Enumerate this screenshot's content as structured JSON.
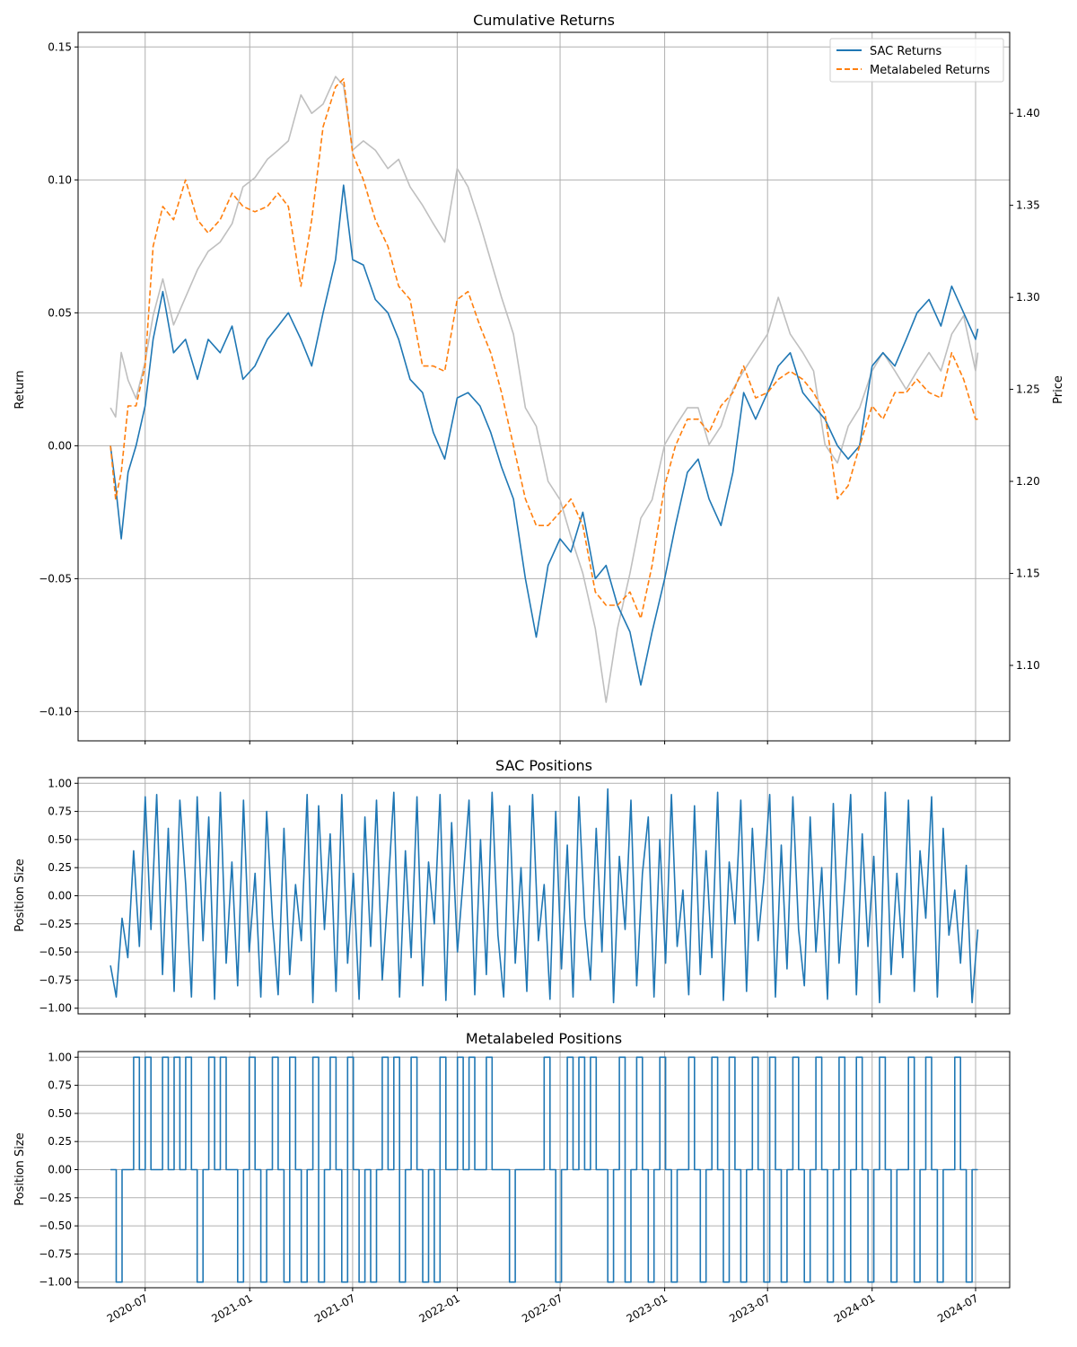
{
  "chart_data": [
    {
      "type": "line",
      "title": "Cumulative Returns",
      "ylabel": "Return",
      "y2label": "Price",
      "ylim": [
        -0.111,
        0.1555
      ],
      "y2lim": [
        1.059,
        1.444
      ],
      "yticks": [
        -0.1,
        -0.05,
        0.0,
        0.05,
        0.1,
        0.15
      ],
      "ytick_labels": [
        "−0.10",
        "−0.05",
        "0.00",
        "0.05",
        "0.10",
        "0.15"
      ],
      "y2ticks": [
        1.1,
        1.15,
        1.2,
        1.25,
        1.3,
        1.35,
        1.4
      ],
      "y2tick_labels": [
        "1.10",
        "1.15",
        "1.20",
        "1.25",
        "1.30",
        "1.35",
        "1.40"
      ],
      "grid": true,
      "legend_position": "top-right",
      "series": [
        {
          "name": "SAC Returns",
          "color": "#1f77b4",
          "style": "solid",
          "axis": "left",
          "x": [
            "2020-05-01",
            "2020-05-10",
            "2020-05-20",
            "2020-06-01",
            "2020-06-15",
            "2020-07-01",
            "2020-07-15",
            "2020-08-01",
            "2020-08-20",
            "2020-09-10",
            "2020-10-01",
            "2020-10-20",
            "2020-11-10",
            "2020-12-01",
            "2020-12-20",
            "2021-01-10",
            "2021-02-01",
            "2021-02-20",
            "2021-03-10",
            "2021-04-01",
            "2021-04-20",
            "2021-05-10",
            "2021-06-01",
            "2021-06-15",
            "2021-07-01",
            "2021-07-20",
            "2021-08-10",
            "2021-09-01",
            "2021-09-20",
            "2021-10-10",
            "2021-11-01",
            "2021-11-20",
            "2021-12-10",
            "2022-01-01",
            "2022-01-20",
            "2022-02-10",
            "2022-03-01",
            "2022-03-20",
            "2022-04-10",
            "2022-05-01",
            "2022-05-20",
            "2022-06-10",
            "2022-07-01",
            "2022-07-20",
            "2022-08-10",
            "2022-09-01",
            "2022-09-20",
            "2022-10-10",
            "2022-11-01",
            "2022-11-20",
            "2022-12-10",
            "2023-01-01",
            "2023-01-20",
            "2023-02-10",
            "2023-03-01",
            "2023-03-20",
            "2023-04-10",
            "2023-05-01",
            "2023-05-20",
            "2023-06-10",
            "2023-07-01",
            "2023-07-20",
            "2023-08-10",
            "2023-09-01",
            "2023-09-20",
            "2023-10-10",
            "2023-11-01",
            "2023-11-20",
            "2023-12-10",
            "2024-01-01",
            "2024-01-20",
            "2024-02-10",
            "2024-03-01",
            "2024-03-20",
            "2024-04-10",
            "2024-05-01",
            "2024-05-20",
            "2024-06-10",
            "2024-07-01",
            "2024-07-05"
          ],
          "values": [
            0.0,
            -0.015,
            -0.035,
            -0.01,
            0.0,
            0.015,
            0.04,
            0.058,
            0.035,
            0.04,
            0.025,
            0.04,
            0.035,
            0.045,
            0.025,
            0.03,
            0.04,
            0.045,
            0.05,
            0.04,
            0.03,
            0.05,
            0.07,
            0.098,
            0.07,
            0.068,
            0.055,
            0.05,
            0.04,
            0.025,
            0.02,
            0.005,
            -0.005,
            0.018,
            0.02,
            0.015,
            0.005,
            -0.008,
            -0.02,
            -0.05,
            -0.072,
            -0.045,
            -0.035,
            -0.04,
            -0.025,
            -0.05,
            -0.045,
            -0.06,
            -0.07,
            -0.09,
            -0.07,
            -0.05,
            -0.03,
            -0.01,
            -0.005,
            -0.02,
            -0.03,
            -0.01,
            0.02,
            0.01,
            0.02,
            0.03,
            0.035,
            0.02,
            0.015,
            0.01,
            0.0,
            -0.005,
            0.0,
            0.03,
            0.035,
            0.03,
            0.04,
            0.05,
            0.055,
            0.045,
            0.06,
            0.05,
            0.04,
            0.044
          ]
        },
        {
          "name": "Metalabeled Returns",
          "color": "#ff7f0e",
          "style": "dashed",
          "axis": "left",
          "x": [
            "2020-05-01",
            "2020-05-10",
            "2020-05-20",
            "2020-06-01",
            "2020-06-15",
            "2020-07-01",
            "2020-07-15",
            "2020-08-01",
            "2020-08-20",
            "2020-09-10",
            "2020-10-01",
            "2020-10-20",
            "2020-11-10",
            "2020-12-01",
            "2020-12-20",
            "2021-01-10",
            "2021-02-01",
            "2021-02-20",
            "2021-03-10",
            "2021-04-01",
            "2021-04-20",
            "2021-05-10",
            "2021-06-01",
            "2021-06-15",
            "2021-07-01",
            "2021-07-20",
            "2021-08-10",
            "2021-09-01",
            "2021-09-20",
            "2021-10-10",
            "2021-11-01",
            "2021-11-20",
            "2021-12-10",
            "2022-01-01",
            "2022-01-20",
            "2022-02-10",
            "2022-03-01",
            "2022-03-20",
            "2022-04-10",
            "2022-05-01",
            "2022-05-20",
            "2022-06-10",
            "2022-07-01",
            "2022-07-20",
            "2022-08-10",
            "2022-09-01",
            "2022-09-20",
            "2022-10-10",
            "2022-11-01",
            "2022-11-20",
            "2022-12-10",
            "2023-01-01",
            "2023-01-20",
            "2023-02-10",
            "2023-03-01",
            "2023-03-20",
            "2023-04-10",
            "2023-05-01",
            "2023-05-20",
            "2023-06-10",
            "2023-07-01",
            "2023-07-20",
            "2023-08-10",
            "2023-09-01",
            "2023-09-20",
            "2023-10-10",
            "2023-11-01",
            "2023-11-20",
            "2023-12-10",
            "2024-01-01",
            "2024-01-20",
            "2024-02-10",
            "2024-03-01",
            "2024-03-20",
            "2024-04-10",
            "2024-05-01",
            "2024-05-20",
            "2024-06-10",
            "2024-07-01",
            "2024-07-05"
          ],
          "values": [
            0.0,
            -0.02,
            -0.01,
            0.015,
            0.015,
            0.03,
            0.075,
            0.09,
            0.085,
            0.1,
            0.085,
            0.08,
            0.085,
            0.095,
            0.09,
            0.088,
            0.09,
            0.095,
            0.09,
            0.06,
            0.085,
            0.12,
            0.135,
            0.138,
            0.11,
            0.1,
            0.085,
            0.075,
            0.06,
            0.055,
            0.03,
            0.03,
            0.028,
            0.055,
            0.058,
            0.045,
            0.035,
            0.02,
            0.0,
            -0.02,
            -0.03,
            -0.03,
            -0.025,
            -0.02,
            -0.03,
            -0.055,
            -0.06,
            -0.06,
            -0.055,
            -0.065,
            -0.045,
            -0.015,
            0.0,
            0.01,
            0.01,
            0.005,
            0.015,
            0.02,
            0.03,
            0.018,
            0.02,
            0.025,
            0.028,
            0.025,
            0.02,
            0.012,
            -0.02,
            -0.015,
            0.0,
            0.015,
            0.01,
            0.02,
            0.02,
            0.025,
            0.02,
            0.018,
            0.035,
            0.025,
            0.01,
            0.01
          ]
        },
        {
          "name": "",
          "color": "#bfbfbf",
          "style": "solid",
          "axis": "right",
          "x": [
            "2020-05-01",
            "2020-05-10",
            "2020-05-20",
            "2020-06-01",
            "2020-06-15",
            "2020-07-01",
            "2020-07-15",
            "2020-08-01",
            "2020-08-20",
            "2020-09-10",
            "2020-10-01",
            "2020-10-20",
            "2020-11-10",
            "2020-12-01",
            "2020-12-20",
            "2021-01-10",
            "2021-02-01",
            "2021-02-20",
            "2021-03-10",
            "2021-04-01",
            "2021-04-20",
            "2021-05-10",
            "2021-06-01",
            "2021-06-15",
            "2021-07-01",
            "2021-07-20",
            "2021-08-10",
            "2021-09-01",
            "2021-09-20",
            "2021-10-10",
            "2021-11-01",
            "2021-11-20",
            "2021-12-10",
            "2022-01-01",
            "2022-01-20",
            "2022-02-10",
            "2022-03-01",
            "2022-03-20",
            "2022-04-10",
            "2022-05-01",
            "2022-05-20",
            "2022-06-10",
            "2022-07-01",
            "2022-07-20",
            "2022-08-10",
            "2022-09-01",
            "2022-09-20",
            "2022-10-10",
            "2022-11-01",
            "2022-11-20",
            "2022-12-10",
            "2023-01-01",
            "2023-01-20",
            "2023-02-10",
            "2023-03-01",
            "2023-03-20",
            "2023-04-10",
            "2023-05-01",
            "2023-05-20",
            "2023-06-10",
            "2023-07-01",
            "2023-07-20",
            "2023-08-10",
            "2023-09-01",
            "2023-09-20",
            "2023-10-10",
            "2023-11-01",
            "2023-11-20",
            "2023-12-10",
            "2024-01-01",
            "2024-01-20",
            "2024-02-10",
            "2024-03-01",
            "2024-03-20",
            "2024-04-10",
            "2024-05-01",
            "2024-05-20",
            "2024-06-10",
            "2024-07-01",
            "2024-07-05"
          ],
          "values": [
            1.24,
            1.235,
            1.27,
            1.255,
            1.245,
            1.265,
            1.29,
            1.31,
            1.285,
            1.3,
            1.315,
            1.325,
            1.33,
            1.34,
            1.36,
            1.365,
            1.375,
            1.38,
            1.385,
            1.41,
            1.4,
            1.405,
            1.42,
            1.415,
            1.38,
            1.385,
            1.38,
            1.37,
            1.375,
            1.36,
            1.35,
            1.34,
            1.33,
            1.37,
            1.36,
            1.34,
            1.32,
            1.3,
            1.28,
            1.24,
            1.23,
            1.2,
            1.19,
            1.17,
            1.15,
            1.12,
            1.08,
            1.12,
            1.15,
            1.18,
            1.19,
            1.22,
            1.23,
            1.24,
            1.24,
            1.22,
            1.23,
            1.25,
            1.26,
            1.27,
            1.28,
            1.3,
            1.28,
            1.27,
            1.26,
            1.22,
            1.21,
            1.23,
            1.24,
            1.26,
            1.27,
            1.26,
            1.25,
            1.26,
            1.27,
            1.26,
            1.28,
            1.29,
            1.26,
            1.27
          ]
        }
      ]
    },
    {
      "type": "line",
      "title": "SAC Positions",
      "ylabel": "Position Size",
      "ylim": [
        -1.05,
        1.05
      ],
      "yticks": [
        -1.0,
        -0.75,
        -0.5,
        -0.25,
        0.0,
        0.25,
        0.5,
        0.75,
        1.0
      ],
      "ytick_labels": [
        "−1.00",
        "−0.75",
        "−0.50",
        "−0.25",
        "0.00",
        "0.25",
        "0.50",
        "0.75",
        "1.00"
      ],
      "grid": true,
      "series": [
        {
          "name": "",
          "color": "#1f77b4",
          "x_start": "2020-05-01",
          "x_end": "2024-07-05",
          "values": [
            -0.62,
            -0.9,
            -0.2,
            -0.55,
            0.4,
            -0.45,
            0.88,
            -0.3,
            0.9,
            -0.7,
            0.6,
            -0.85,
            0.85,
            0.1,
            -0.9,
            0.88,
            -0.4,
            0.7,
            -0.92,
            0.92,
            -0.6,
            0.3,
            -0.8,
            0.85,
            -0.5,
            0.2,
            -0.9,
            0.75,
            -0.2,
            -0.88,
            0.6,
            -0.7,
            0.1,
            -0.4,
            0.9,
            -0.95,
            0.8,
            -0.3,
            0.55,
            -0.85,
            0.9,
            -0.6,
            0.2,
            -0.92,
            0.7,
            -0.45,
            0.85,
            -0.75,
            0.05,
            0.92,
            -0.9,
            0.4,
            -0.55,
            0.88,
            -0.8,
            0.3,
            -0.25,
            0.9,
            -0.93,
            0.65,
            -0.5,
            0.15,
            0.85,
            -0.88,
            0.5,
            -0.7,
            0.92,
            -0.35,
            -0.9,
            0.8,
            -0.6,
            0.25,
            -0.85,
            0.9,
            -0.4,
            0.1,
            -0.92,
            0.75,
            -0.65,
            0.45,
            -0.9,
            0.88,
            -0.2,
            -0.75,
            0.6,
            -0.5,
            0.95,
            -0.95,
            0.35,
            -0.3,
            0.85,
            -0.8,
            0.2,
            0.7,
            -0.9,
            0.5,
            -0.6,
            0.9,
            -0.45,
            0.05,
            -0.88,
            0.8,
            -0.7,
            0.4,
            -0.55,
            0.92,
            -0.93,
            0.3,
            -0.25,
            0.85,
            -0.85,
            0.6,
            -0.4,
            0.15,
            0.9,
            -0.9,
            0.45,
            -0.65,
            0.88,
            -0.3,
            -0.8,
            0.7,
            -0.5,
            0.25,
            -0.92,
            0.82,
            -0.6,
            0.1,
            0.9,
            -0.88,
            0.55,
            -0.45,
            0.35,
            -0.95,
            0.92,
            -0.7,
            0.2,
            -0.55,
            0.85,
            -0.85,
            0.4,
            -0.2,
            0.88,
            -0.9,
            0.6,
            -0.35,
            0.05,
            -0.6,
            0.27,
            -0.95,
            -0.3
          ]
        }
      ]
    },
    {
      "type": "line",
      "title": "Metalabeled Positions",
      "ylabel": "Position Size",
      "ylim": [
        -1.05,
        1.05
      ],
      "yticks": [
        -1.0,
        -0.75,
        -0.5,
        -0.25,
        0.0,
        0.25,
        0.5,
        0.75,
        1.0
      ],
      "ytick_labels": [
        "−1.00",
        "−0.75",
        "−0.50",
        "−0.25",
        "0.00",
        "0.25",
        "0.50",
        "0.75",
        "1.00"
      ],
      "grid": true,
      "series": [
        {
          "name": "",
          "color": "#1f77b4",
          "x_start": "2020-05-01",
          "x_end": "2024-07-05",
          "values": [
            0,
            -1,
            0,
            0,
            1,
            0,
            1,
            0,
            0,
            1,
            0,
            1,
            0,
            1,
            0,
            -1,
            0,
            1,
            0,
            1,
            0,
            0,
            -1,
            0,
            1,
            0,
            -1,
            0,
            1,
            0,
            -1,
            1,
            0,
            -1,
            0,
            1,
            -1,
            0,
            1,
            0,
            -1,
            1,
            0,
            -1,
            0,
            -1,
            0,
            1,
            0,
            1,
            -1,
            0,
            1,
            0,
            -1,
            0,
            -1,
            1,
            0,
            0,
            1,
            0,
            1,
            0,
            0,
            1,
            0,
            0,
            0,
            -1,
            0,
            0,
            0,
            0,
            0,
            1,
            0,
            -1,
            0,
            1,
            0,
            1,
            0,
            1,
            0,
            0,
            -1,
            0,
            1,
            -1,
            0,
            1,
            0,
            -1,
            0,
            1,
            0,
            -1,
            0,
            0,
            1,
            0,
            -1,
            0,
            1,
            0,
            -1,
            1,
            0,
            -1,
            0,
            1,
            0,
            -1,
            1,
            0,
            -1,
            0,
            1,
            0,
            -1,
            0,
            1,
            0,
            -1,
            0,
            1,
            -1,
            0,
            1,
            0,
            -1,
            0,
            1,
            0,
            -1,
            0,
            0,
            1,
            -1,
            0,
            1,
            0,
            -1,
            0,
            0,
            1,
            0,
            -1,
            0,
            0
          ]
        }
      ]
    }
  ],
  "xaxis": {
    "ticks": [
      "2020-07-01",
      "2021-01-01",
      "2021-07-01",
      "2022-01-01",
      "2022-07-01",
      "2023-01-01",
      "2023-07-01",
      "2024-01-01",
      "2024-07-01"
    ],
    "tick_labels": [
      "2020-07",
      "2021-01",
      "2021-07",
      "2022-01",
      "2022-07",
      "2023-01",
      "2023-07",
      "2024-01",
      "2024-07"
    ],
    "range": [
      "2020-03-05",
      "2024-08-30"
    ]
  }
}
